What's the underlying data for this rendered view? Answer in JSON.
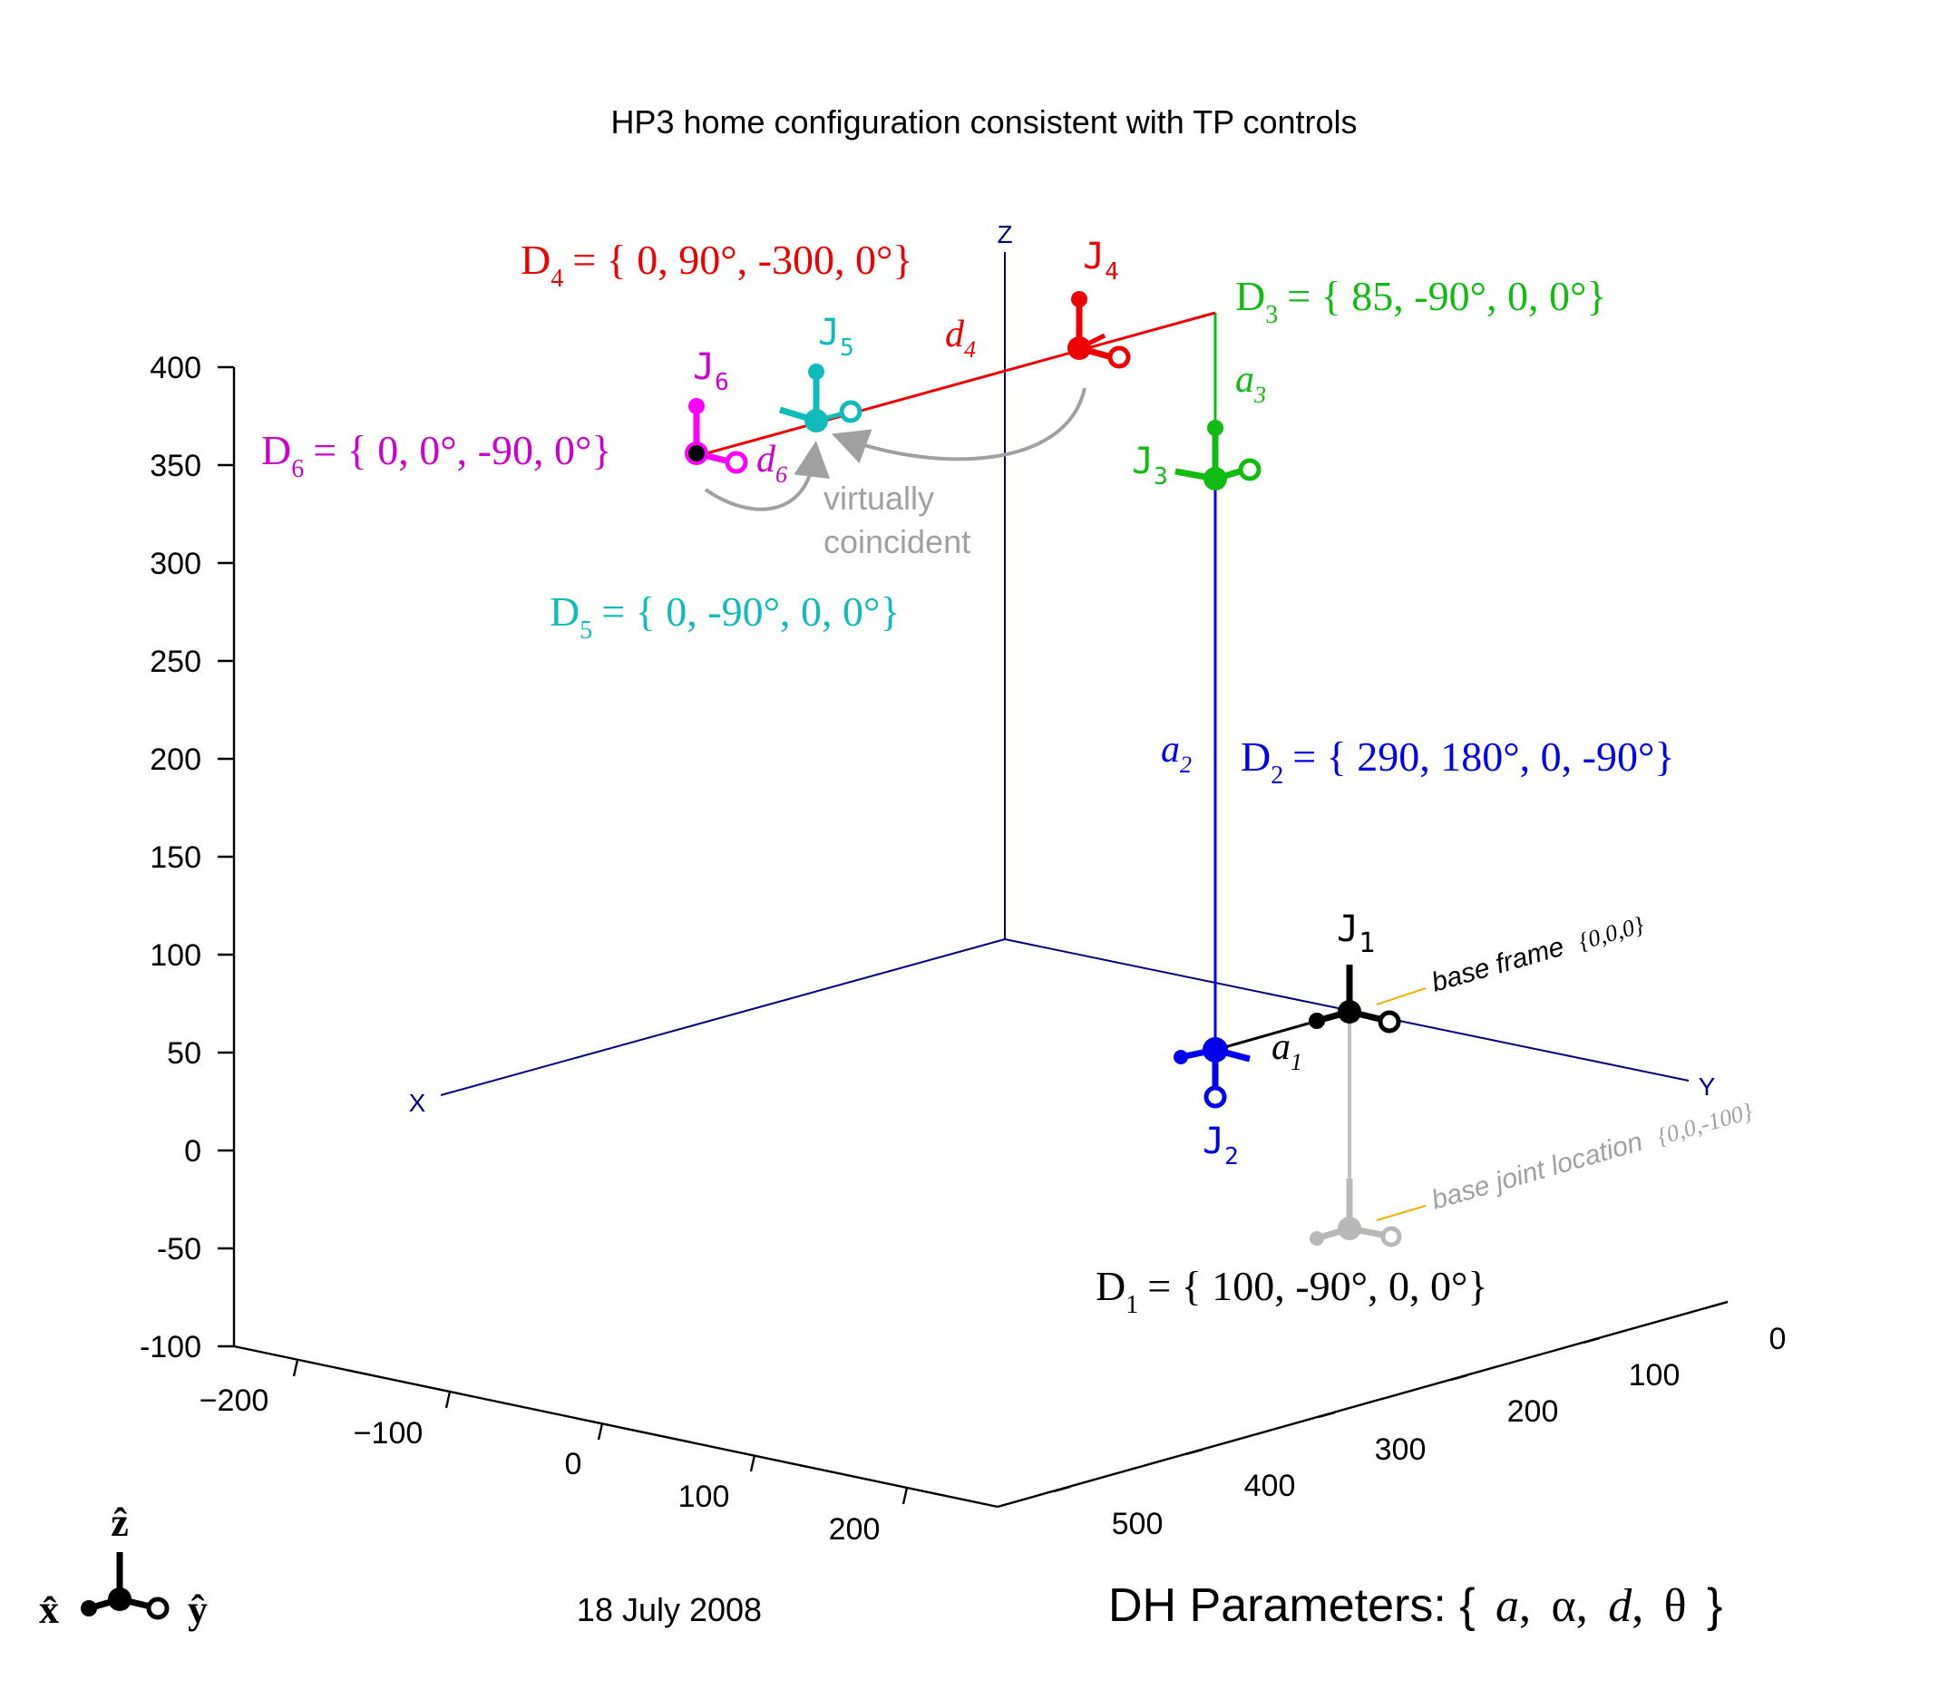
{
  "title": "HP3 home configuration consistent with TP controls",
  "date": "18 July 2008",
  "dh_caption": {
    "prefix": "DH Parameters: {",
    "a": "a",
    "alpha": "α",
    "d": "d",
    "theta": "θ",
    "suffix": "}"
  },
  "axes": {
    "z_labels": [
      "400",
      "350",
      "300",
      "250",
      "200",
      "150",
      "100",
      "50",
      "0",
      "-50",
      "-100"
    ],
    "x_labels": [
      "−200",
      "−100",
      "0",
      "100",
      "200"
    ],
    "y_labels": [
      "0",
      "100",
      "200",
      "300",
      "400",
      "500"
    ],
    "frame_x": "X",
    "frame_y": "Y",
    "frame_z": "Z"
  },
  "colors": {
    "d1": "#000000",
    "d2": "#0000ee",
    "d3": "#11bb11",
    "d4": "#ee0000",
    "d5": "#11bbbb",
    "d6": "#cc00cc",
    "axis": "#000080",
    "gray": "#a0a0a0",
    "leader": "#f0b000"
  },
  "params": {
    "d1": {
      "name": "D",
      "sub": "1",
      "value": "= { 100, -90°, 0, 0°}"
    },
    "d2": {
      "name": "D",
      "sub": "2",
      "value": "= { 290, 180°, 0, -90°}"
    },
    "d3": {
      "name": "D",
      "sub": "3",
      "value": "= { 85, -90°, 0, 0°}"
    },
    "d4": {
      "name": "D",
      "sub": "4",
      "value": "= { 0, 90°, -300, 0°}"
    },
    "d5": {
      "name": "D",
      "sub": "5",
      "value": "= { 0, -90°, 0, 0°}"
    },
    "d6": {
      "name": "D",
      "sub": "6",
      "value": "= { 0, 0°, -90, 0°}"
    }
  },
  "joints": {
    "j1": {
      "name": "J",
      "sub": "1"
    },
    "j2": {
      "name": "J",
      "sub": "2"
    },
    "j3": {
      "name": "J",
      "sub": "3"
    },
    "j4": {
      "name": "J",
      "sub": "4"
    },
    "j5": {
      "name": "J",
      "sub": "5"
    },
    "j6": {
      "name": "J",
      "sub": "6"
    }
  },
  "links": {
    "a1": {
      "name": "a",
      "sub": "1"
    },
    "a2": {
      "name": "a",
      "sub": "2"
    },
    "a3": {
      "name": "a",
      "sub": "3"
    },
    "d4": {
      "name": "d",
      "sub": "4"
    },
    "d6": {
      "name": "d",
      "sub": "6"
    }
  },
  "annotations": {
    "base_frame": "base frame",
    "base_frame_coords": "{0,0,0}",
    "base_joint": "base joint location",
    "base_joint_coords": "{0,0,-100}",
    "virtually": "virtually",
    "coincident": "coincident"
  },
  "legend": {
    "x": "x̂",
    "y": "ŷ",
    "z": "ẑ",
    "icons": [
      "x-axis-icon",
      "y-axis-icon",
      "z-axis-icon"
    ]
  }
}
